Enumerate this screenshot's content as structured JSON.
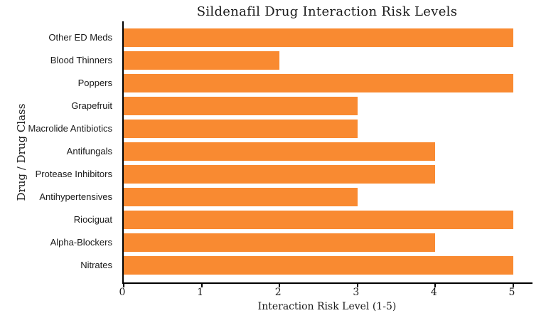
{
  "chart_data": {
    "type": "bar",
    "orientation": "horizontal",
    "title": "Sildenafil Drug Interaction Risk Levels",
    "xlabel": "Interaction Risk Level (1-5)",
    "ylabel": "Drug / Drug Class",
    "categories": [
      "Other ED Meds",
      "Blood Thinners",
      "Poppers",
      "Grapefruit",
      "Macrolide Antibiotics",
      "Antifungals",
      "Protease Inhibitors",
      "Antihypertensives",
      "Riociguat",
      "Alpha-Blockers",
      "Nitrates"
    ],
    "values": [
      5,
      2,
      5,
      3,
      3,
      4,
      4,
      3,
      5,
      4,
      5
    ],
    "xticks": [
      0,
      1,
      2,
      3,
      4,
      5
    ],
    "xlim": [
      0,
      5.25
    ],
    "grid": false,
    "legend": "none",
    "colors": {
      "bar": "#F98A31",
      "axis": "#000000",
      "text": "#1a1a1a"
    }
  }
}
